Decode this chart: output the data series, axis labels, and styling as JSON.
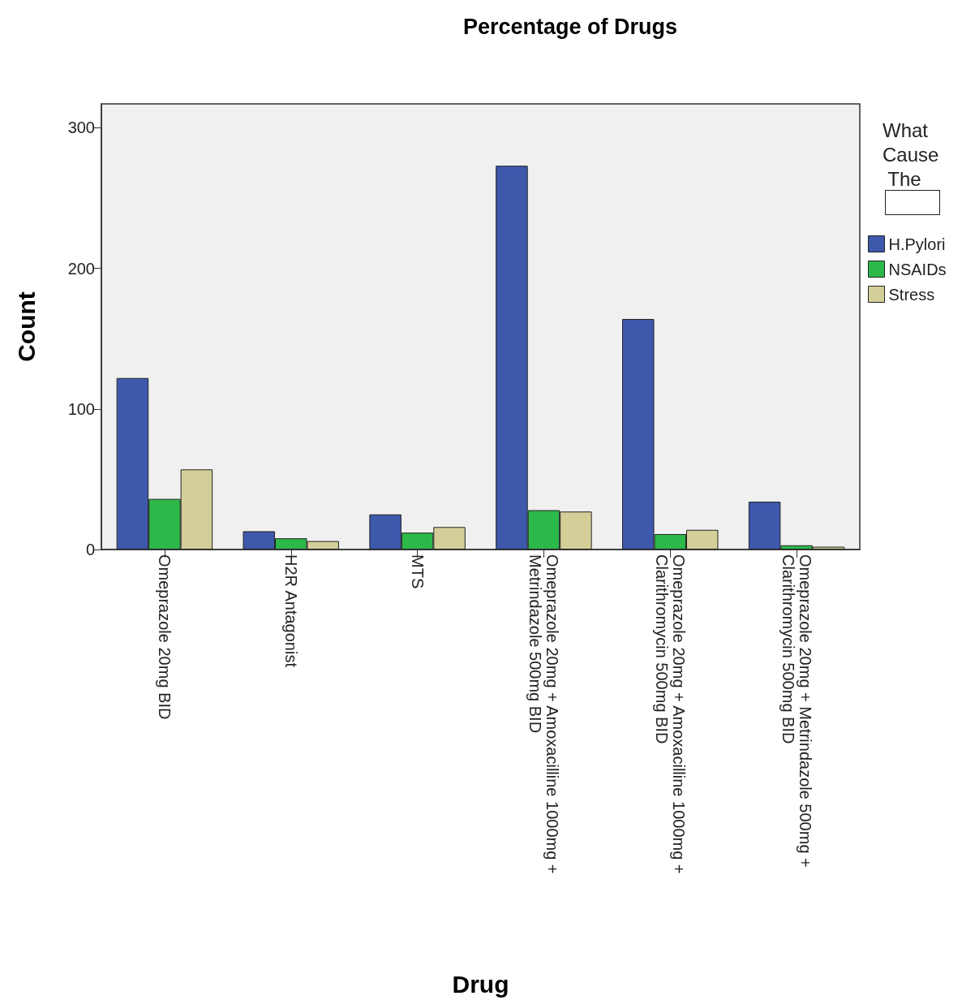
{
  "chart_data": {
    "type": "bar",
    "title": "Percentage of Drugs",
    "xlabel": "Drug",
    "ylabel": "Count",
    "legend_title": "What Cause The",
    "legend": "right",
    "categories": [
      "Omeprazole 20mg BID",
      "H2R Antagonist",
      "MTS",
      "Omeprazole 20mg + Amoxacilline 1000mg + Metrindazole 500mg BID",
      "Omeprazole 20mg + Amoxacilline 1000mg + Clarithromycin 500mg BID",
      "Omeprazole 20mg + Metrindazole 500mg + Clarithromycin 500mg BID"
    ],
    "series": [
      {
        "name": "H.Pylori",
        "color": "#3e58ac",
        "values": [
          122,
          13,
          25,
          273,
          164,
          34
        ]
      },
      {
        "name": "NSAIDs",
        "color": "#2db84a",
        "values": [
          36,
          8,
          12,
          28,
          11,
          3
        ]
      },
      {
        "name": "Stress",
        "color": "#d4cf98",
        "values": [
          57,
          6,
          16,
          27,
          14,
          2
        ]
      }
    ],
    "ylim": [
      0,
      317
    ],
    "yticks": [
      0,
      100,
      200,
      300
    ],
    "grid": false
  }
}
